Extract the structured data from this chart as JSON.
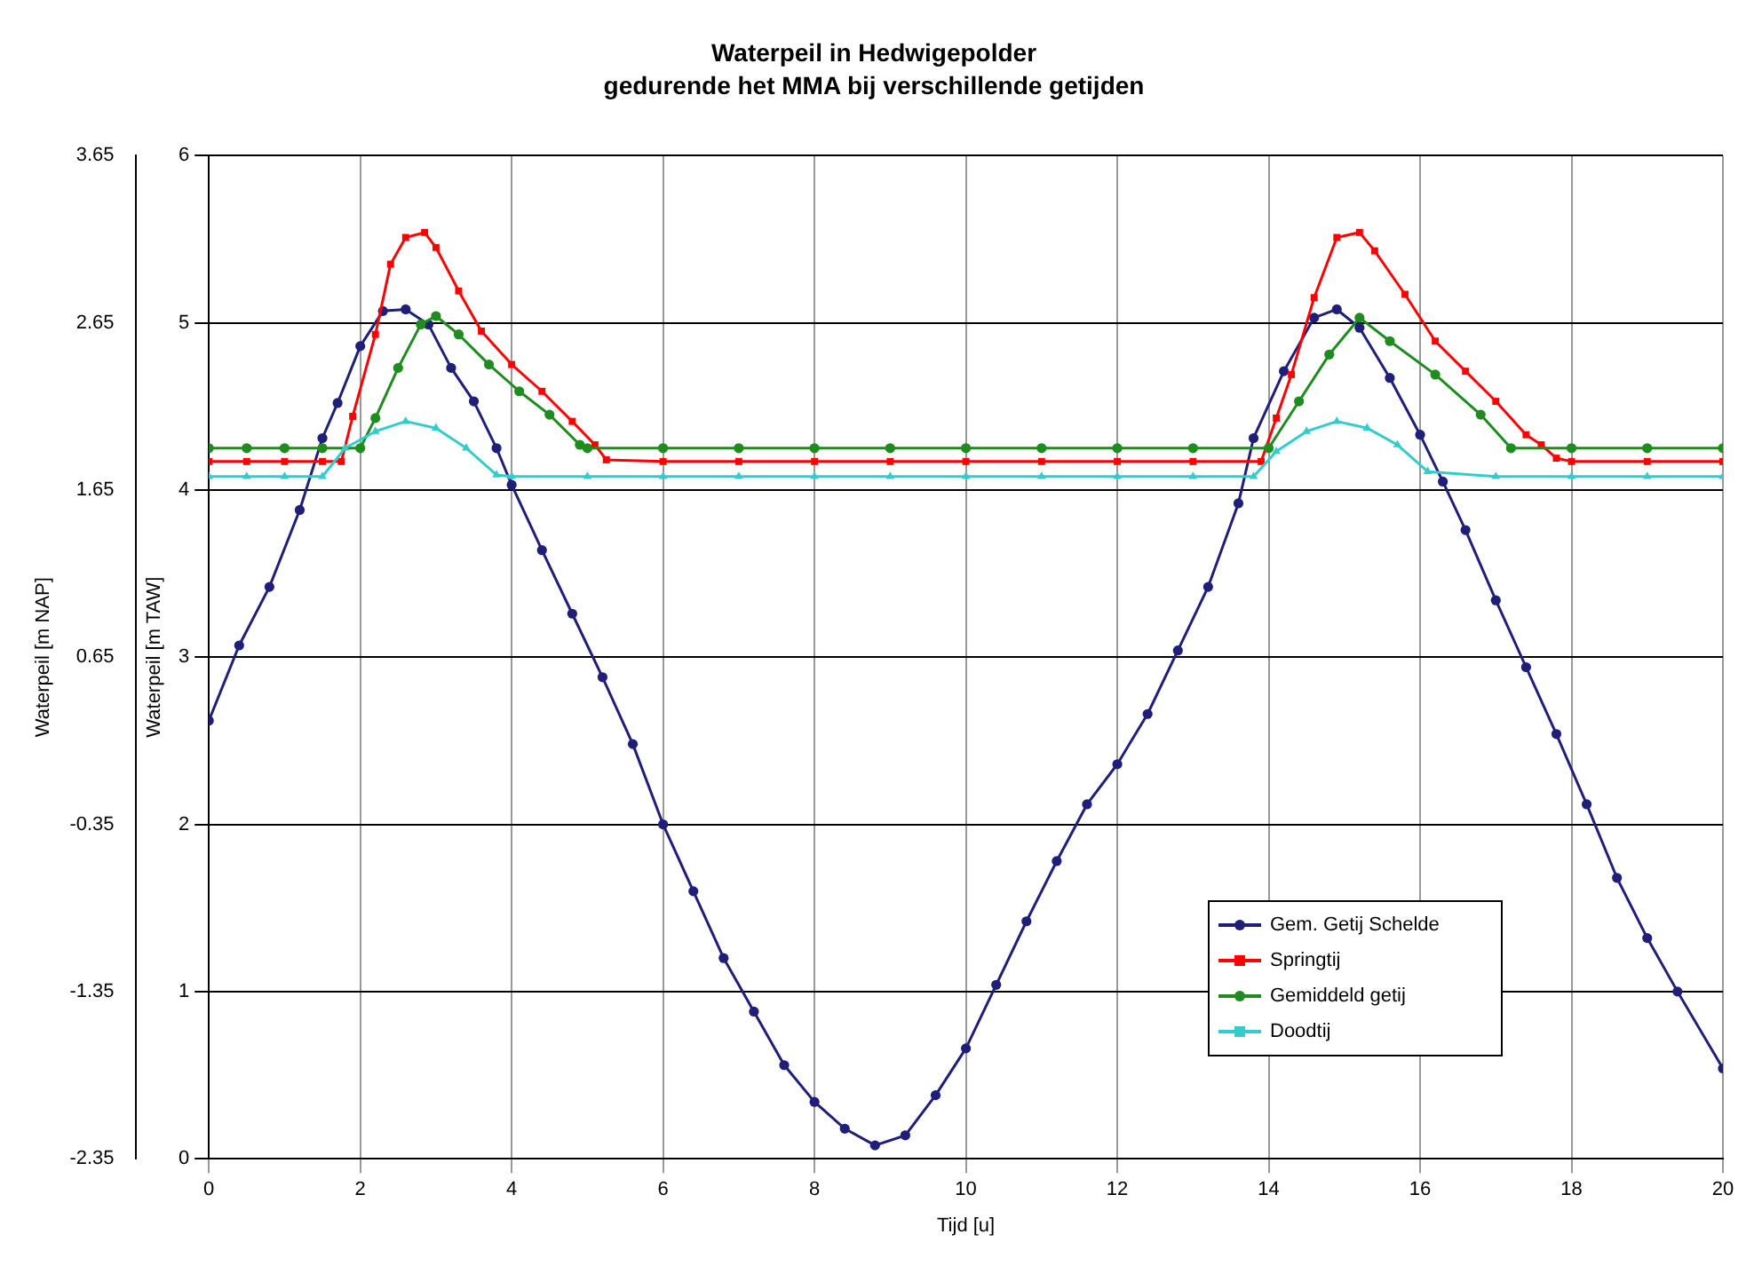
{
  "chart_data": {
    "type": "line",
    "title": "Waterpeil in Hedwigepolder",
    "subtitle": "gedurende het MMA bij verschillende getijden",
    "xlabel": "Tijd [u]",
    "ylabel": "Waterpeil [m TAW]",
    "y2label": "Waterpeil [m NAP]",
    "xlim": [
      0,
      20
    ],
    "xticks": [
      0,
      2,
      4,
      6,
      8,
      10,
      12,
      14,
      16,
      18,
      20
    ],
    "ylim": [
      0,
      6
    ],
    "yticks": [
      0,
      1,
      2,
      3,
      4,
      5,
      6
    ],
    "y2lim": [
      -2.35,
      3.65
    ],
    "y2ticks": [
      -2.35,
      -1.35,
      -0.35,
      0.65,
      1.65,
      2.65,
      3.65
    ],
    "grid": true,
    "legend": "bottom right",
    "line_style": "solid",
    "series": [
      {
        "name": "Gem. Getij Schelde",
        "color": "#1f1f7a",
        "marker": "circle",
        "x": [
          0,
          0.4,
          0.8,
          1.2,
          1.5,
          1.7,
          2.0,
          2.3,
          2.6,
          2.9,
          3.2,
          3.5,
          3.8,
          4.0,
          4.4,
          4.8,
          5.2,
          5.6,
          6.0,
          6.4,
          6.8,
          7.2,
          7.6,
          8.0,
          8.4,
          8.8,
          9.2,
          9.6,
          10.0,
          10.4,
          10.8,
          11.2,
          11.6,
          12.0,
          12.4,
          12.8,
          13.2,
          13.6,
          13.8,
          14.2,
          14.6,
          14.9,
          15.2,
          15.6,
          16.0,
          16.3,
          16.6,
          17.0,
          17.4,
          17.8,
          18.2,
          18.6,
          19.0,
          19.4,
          20.0
        ],
        "values": [
          2.62,
          3.07,
          3.42,
          3.88,
          4.31,
          4.52,
          4.86,
          5.07,
          5.08,
          4.99,
          4.73,
          4.53,
          4.25,
          4.03,
          3.64,
          3.26,
          2.88,
          2.48,
          2.0,
          1.6,
          1.2,
          0.88,
          0.56,
          0.34,
          0.18,
          0.08,
          0.14,
          0.38,
          0.66,
          1.04,
          1.42,
          1.78,
          2.12,
          2.36,
          2.66,
          3.04,
          3.42,
          3.92,
          4.31,
          4.71,
          5.03,
          5.08,
          4.97,
          4.67,
          4.33,
          4.05,
          3.76,
          3.34,
          2.94,
          2.54,
          2.12,
          1.68,
          1.32,
          1.0,
          0.54
        ]
      },
      {
        "name": "Springtij",
        "color": "#ff0000",
        "marker": "square",
        "x": [
          0,
          0.5,
          1.0,
          1.5,
          1.75,
          1.9,
          2.2,
          2.4,
          2.6,
          2.85,
          3.0,
          3.3,
          3.6,
          4.0,
          4.4,
          4.8,
          5.1,
          5.25,
          6,
          7,
          8,
          9,
          10,
          11,
          12,
          13,
          13.9,
          14.1,
          14.3,
          14.6,
          14.9,
          15.2,
          15.4,
          15.8,
          16.2,
          16.6,
          17.0,
          17.4,
          17.6,
          17.8,
          18,
          19,
          20
        ],
        "values": [
          4.17,
          4.17,
          4.17,
          4.17,
          4.17,
          4.44,
          4.93,
          5.35,
          5.51,
          5.54,
          5.45,
          5.19,
          4.95,
          4.75,
          4.59,
          4.41,
          4.27,
          4.18,
          4.17,
          4.17,
          4.17,
          4.17,
          4.17,
          4.17,
          4.17,
          4.17,
          4.17,
          4.43,
          4.69,
          5.15,
          5.51,
          5.54,
          5.43,
          5.17,
          4.89,
          4.71,
          4.53,
          4.33,
          4.27,
          4.19,
          4.17,
          4.17,
          4.17
        ]
      },
      {
        "name": "Gemiddeld getij",
        "color": "#1e8c1e",
        "marker": "circle",
        "x": [
          0,
          0.5,
          1.0,
          1.5,
          2.0,
          2.2,
          2.5,
          2.8,
          3.0,
          3.3,
          3.7,
          4.1,
          4.5,
          4.9,
          5.0,
          6,
          7,
          8,
          9,
          10,
          11,
          12,
          13,
          14.0,
          14.4,
          14.8,
          15.2,
          15.6,
          16.2,
          16.8,
          17.2,
          18,
          19,
          20
        ],
        "values": [
          4.25,
          4.25,
          4.25,
          4.25,
          4.25,
          4.43,
          4.73,
          4.99,
          5.04,
          4.93,
          4.75,
          4.59,
          4.45,
          4.27,
          4.25,
          4.25,
          4.25,
          4.25,
          4.25,
          4.25,
          4.25,
          4.25,
          4.25,
          4.25,
          4.53,
          4.81,
          5.03,
          4.89,
          4.69,
          4.45,
          4.25,
          4.25,
          4.25,
          4.25
        ]
      },
      {
        "name": "Doodtij",
        "color": "#33cccc",
        "marker": "triangle",
        "x": [
          0,
          0.5,
          1.0,
          1.5,
          1.8,
          2.2,
          2.6,
          3.0,
          3.4,
          3.8,
          4,
          5,
          6,
          7,
          8,
          9,
          10,
          11,
          12,
          13,
          13.8,
          14.1,
          14.5,
          14.9,
          15.3,
          15.7,
          16.1,
          17,
          18,
          19,
          20
        ],
        "values": [
          4.08,
          4.08,
          4.08,
          4.08,
          4.25,
          4.35,
          4.41,
          4.37,
          4.25,
          4.09,
          4.08,
          4.08,
          4.08,
          4.08,
          4.08,
          4.08,
          4.08,
          4.08,
          4.08,
          4.08,
          4.08,
          4.23,
          4.35,
          4.41,
          4.37,
          4.27,
          4.11,
          4.08,
          4.08,
          4.08,
          4.08
        ]
      }
    ]
  }
}
